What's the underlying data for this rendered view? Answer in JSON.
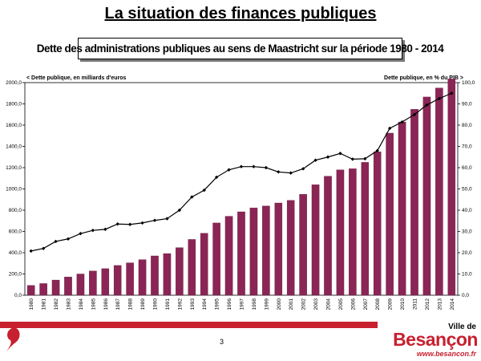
{
  "slide": {
    "title": "La situation des finances publiques",
    "page_number": "3",
    "colors": {
      "accent": "#c8202f",
      "bar": "#8b2555"
    }
  },
  "logo": {
    "top": "Ville de",
    "main": "Besançon",
    "url": "www.besancon.fr"
  },
  "chart_data": {
    "type": "bar",
    "title": "Dette des administrations publiques au sens de Maastricht sur la période 1980 - 2014",
    "left_axis_label": "< Dette publique, en milliards d'euros",
    "right_axis_label": "Dette publique, en % du PIB >",
    "categories": [
      "1980",
      "1981",
      "1982",
      "1983",
      "1984",
      "1985",
      "1986",
      "1987",
      "1988",
      "1989",
      "1990",
      "1991",
      "1992",
      "1993",
      "1994",
      "1995",
      "1996",
      "1997",
      "1998",
      "1999",
      "2000",
      "2001",
      "2002",
      "2003",
      "2004",
      "2005",
      "2006",
      "2007",
      "2008",
      "2009",
      "2010",
      "2011",
      "2012",
      "2013",
      "2014"
    ],
    "bar_series": {
      "axis": "left",
      "values": [
        92,
        110,
        143,
        172,
        200,
        228,
        250,
        280,
        305,
        335,
        370,
        392,
        448,
        525,
        583,
        680,
        743,
        785,
        822,
        840,
        868,
        893,
        950,
        1040,
        1120,
        1180,
        1190,
        1250,
        1350,
        1525,
        1630,
        1750,
        1865,
        1950,
        2035
      ]
    },
    "line_series": {
      "axis": "right",
      "values": [
        20.8,
        22.0,
        25.3,
        26.5,
        29.0,
        30.5,
        31.0,
        33.5,
        33.3,
        34.0,
        35.2,
        36.0,
        40.0,
        46.2,
        49.4,
        55.5,
        59.0,
        60.5,
        60.5,
        60.0,
        58.0,
        57.5,
        59.5,
        63.5,
        65.0,
        66.7,
        64.0,
        64.2,
        68.0,
        78.5,
        81.5,
        85.0,
        89.5,
        92.5,
        95.0
      ]
    },
    "left_axis": {
      "ylim": [
        0,
        2000
      ],
      "ticks": [
        "0,0",
        "200,0",
        "400,0",
        "600,0",
        "800,0",
        "1000,0",
        "1200,0",
        "1400,0",
        "1600,0",
        "1800,0",
        "2000,0"
      ]
    },
    "right_axis": {
      "ylim": [
        0,
        100
      ],
      "ticks": [
        "0,0",
        "10,0",
        "20,0",
        "30,0",
        "40,0",
        "50,0",
        "60,0",
        "70,0",
        "80,0",
        "90,0",
        "100,0"
      ]
    },
    "grid": false,
    "legend": "none"
  }
}
